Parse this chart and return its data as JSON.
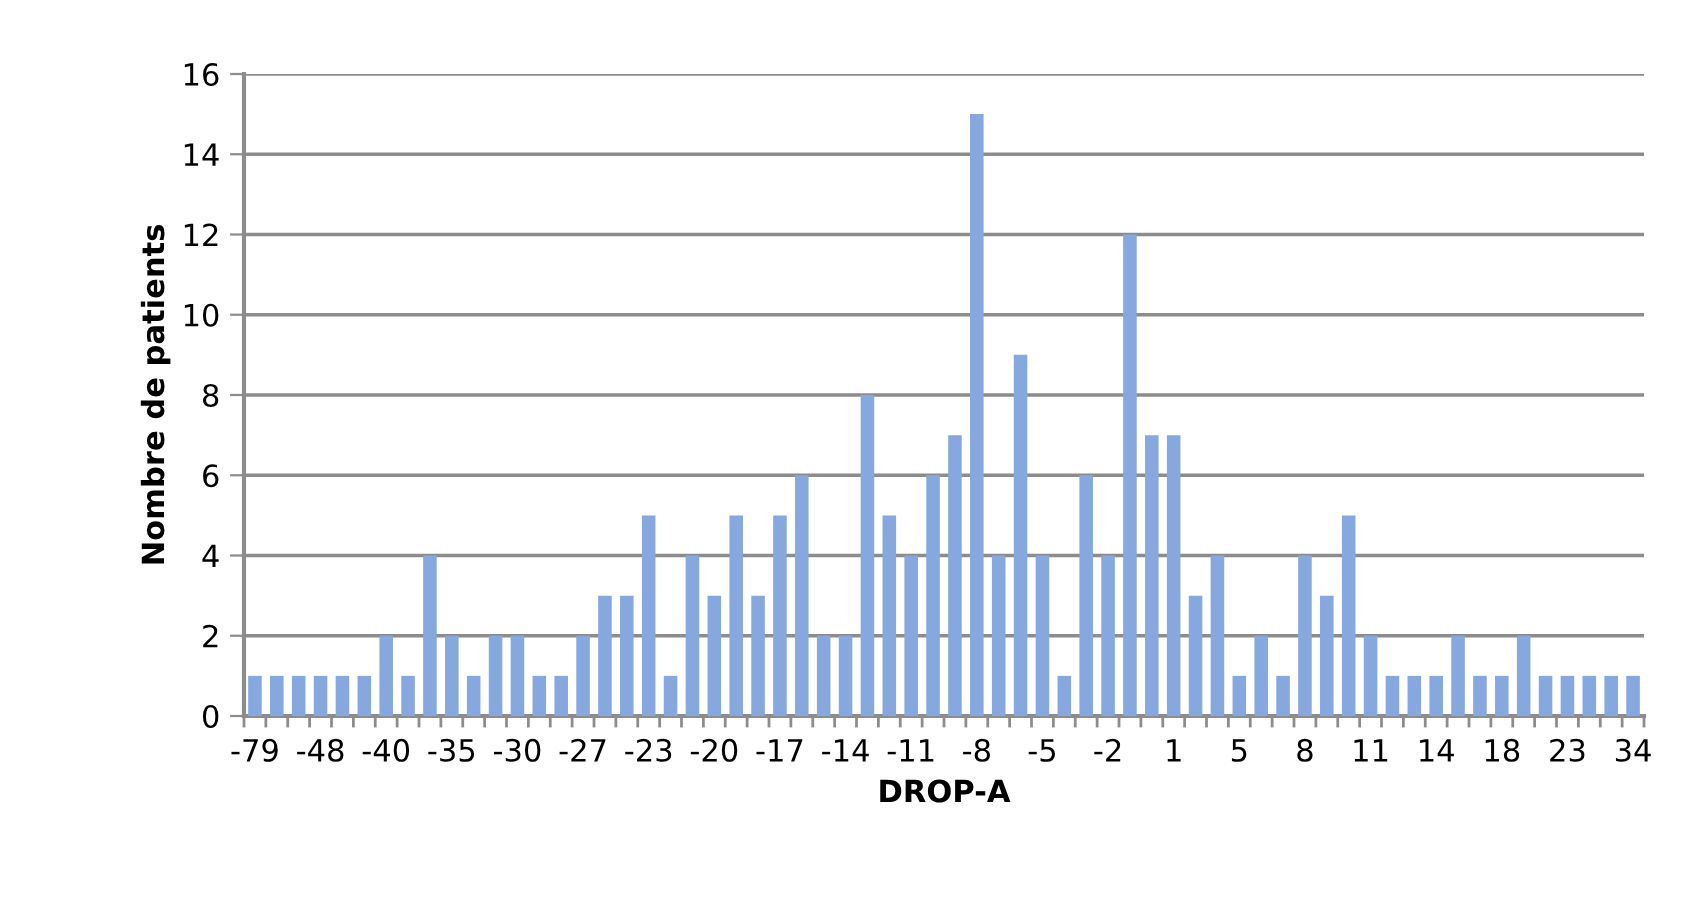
{
  "chart_data": {
    "type": "bar",
    "xlabel": "DROP-A",
    "ylabel": "Nombre de patients",
    "categories": [
      "-79",
      null,
      null,
      "-48",
      null,
      null,
      "-40",
      null,
      null,
      "-35",
      null,
      null,
      "-30",
      null,
      null,
      "-27",
      null,
      null,
      "-23",
      null,
      null,
      "-20",
      null,
      null,
      "-17",
      null,
      null,
      "-14",
      null,
      null,
      "-11",
      null,
      null,
      "-8",
      null,
      null,
      "-5",
      null,
      null,
      "-2",
      null,
      null,
      "1",
      null,
      null,
      "5",
      null,
      null,
      "8",
      null,
      null,
      "11",
      null,
      null,
      "14",
      null,
      null,
      "18",
      null,
      null,
      "23",
      null,
      null,
      "34"
    ],
    "values": [
      1,
      1,
      1,
      1,
      1,
      1,
      2,
      1,
      4,
      2,
      1,
      2,
      2,
      1,
      1,
      2,
      3,
      3,
      5,
      1,
      4,
      3,
      5,
      3,
      5,
      6,
      2,
      2,
      8,
      5,
      4,
      6,
      7,
      15,
      4,
      9,
      4,
      1,
      6,
      4,
      12,
      7,
      7,
      3,
      4,
      1,
      2,
      1,
      4,
      3,
      5,
      2,
      1,
      1,
      1,
      2,
      1,
      1,
      2,
      1,
      1,
      1,
      1,
      1
    ],
    "color": "#86a8de",
    "ylim": [
      0,
      16
    ],
    "yticks": [
      0,
      2,
      4,
      6,
      8,
      10,
      12,
      14,
      16
    ],
    "grid": "y",
    "legend": false
  }
}
